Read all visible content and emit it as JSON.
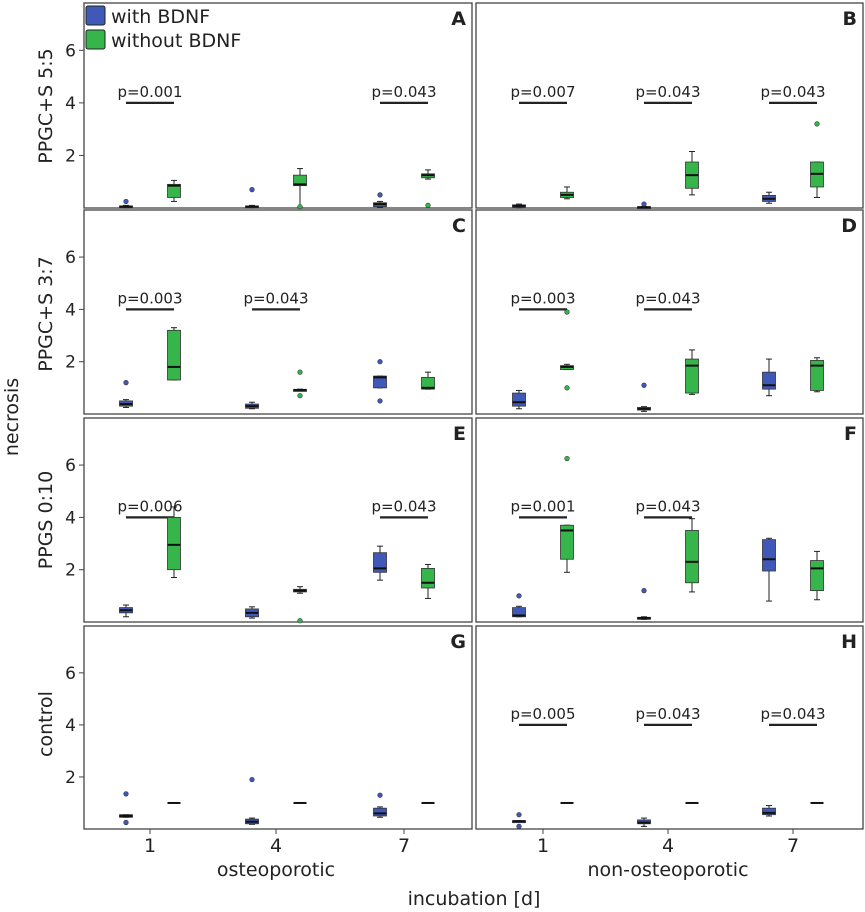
{
  "colors": {
    "with_bdnf": "#4059b8",
    "without_bdnf": "#35b54a",
    "frame": "#444444"
  },
  "chart_data": {
    "type": "box",
    "ylabel": "necrosis",
    "xlabel": "incubation [d]",
    "group_labels": [
      "osteoporotic",
      "non-osteoporotic"
    ],
    "x_ticks": [
      "1",
      "4",
      "7"
    ],
    "y_ticks": [
      "2",
      "4",
      "6"
    ],
    "ylim": [
      0,
      7.8
    ],
    "legend": [
      "with BDNF",
      "without BDNF"
    ],
    "row_labels": [
      "PPGC+S 5:5",
      "PPGC+S 3:7",
      "PPGS 0:10",
      "control"
    ],
    "panels": [
      {
        "letter": "A",
        "row": 0,
        "col": 0,
        "boxes": [
          {
            "day": 0,
            "series": 0,
            "q1": 0.02,
            "med": 0.05,
            "q3": 0.08,
            "lo": 0.0,
            "hi": 0.1,
            "out": [
              0.25
            ]
          },
          {
            "day": 0,
            "series": 1,
            "q1": 0.4,
            "med": 0.85,
            "q3": 0.9,
            "lo": 0.25,
            "hi": 1.05,
            "out": []
          },
          {
            "day": 1,
            "series": 0,
            "q1": 0.02,
            "med": 0.05,
            "q3": 0.08,
            "lo": 0.0,
            "hi": 0.1,
            "out": [
              0.7
            ]
          },
          {
            "day": 1,
            "series": 1,
            "q1": 0.85,
            "med": 0.9,
            "q3": 1.25,
            "lo": 0.0,
            "hi": 1.5,
            "out": [
              0.05
            ]
          },
          {
            "day": 2,
            "series": 0,
            "q1": 0.05,
            "med": 0.15,
            "q3": 0.2,
            "lo": 0.02,
            "hi": 0.25,
            "out": [
              0.5
            ]
          },
          {
            "day": 2,
            "series": 1,
            "q1": 1.15,
            "med": 1.25,
            "q3": 1.3,
            "lo": 1.1,
            "hi": 1.45,
            "out": [
              0.1
            ]
          }
        ],
        "pvals": [
          {
            "day": 0,
            "text": "p=0.001"
          },
          {
            "day": 2,
            "text": "p=0.043"
          }
        ]
      },
      {
        "letter": "B",
        "row": 0,
        "col": 1,
        "boxes": [
          {
            "day": 0,
            "series": 0,
            "q1": 0.03,
            "med": 0.08,
            "q3": 0.12,
            "lo": 0.0,
            "hi": 0.15,
            "out": []
          },
          {
            "day": 0,
            "series": 1,
            "q1": 0.4,
            "med": 0.5,
            "q3": 0.6,
            "lo": 0.35,
            "hi": 0.8,
            "out": []
          },
          {
            "day": 1,
            "series": 0,
            "q1": 0.01,
            "med": 0.03,
            "q3": 0.05,
            "lo": 0.0,
            "hi": 0.06,
            "out": [
              0.15
            ]
          },
          {
            "day": 1,
            "series": 1,
            "q1": 0.75,
            "med": 1.25,
            "q3": 1.75,
            "lo": 0.5,
            "hi": 2.15,
            "out": []
          },
          {
            "day": 2,
            "series": 0,
            "q1": 0.25,
            "med": 0.35,
            "q3": 0.48,
            "lo": 0.18,
            "hi": 0.6,
            "out": []
          },
          {
            "day": 2,
            "series": 1,
            "q1": 0.8,
            "med": 1.3,
            "q3": 1.75,
            "lo": 0.4,
            "hi": 1.75,
            "out": [
              3.2
            ]
          }
        ],
        "pvals": [
          {
            "day": 0,
            "text": "p=0.007"
          },
          {
            "day": 1,
            "text": "p=0.043"
          },
          {
            "day": 2,
            "text": "p=0.043"
          }
        ]
      },
      {
        "letter": "C",
        "row": 1,
        "col": 0,
        "boxes": [
          {
            "day": 0,
            "series": 0,
            "q1": 0.3,
            "med": 0.38,
            "q3": 0.5,
            "lo": 0.25,
            "hi": 0.55,
            "out": [
              1.2
            ]
          },
          {
            "day": 0,
            "series": 1,
            "q1": 1.3,
            "med": 1.8,
            "q3": 3.2,
            "lo": 1.3,
            "hi": 3.3,
            "out": []
          },
          {
            "day": 1,
            "series": 0,
            "q1": 0.22,
            "med": 0.3,
            "q3": 0.38,
            "lo": 0.2,
            "hi": 0.45,
            "out": []
          },
          {
            "day": 1,
            "series": 1,
            "q1": 0.9,
            "med": 0.92,
            "q3": 0.94,
            "lo": 0.9,
            "hi": 0.95,
            "out": [
              1.6,
              0.7
            ]
          },
          {
            "day": 2,
            "series": 0,
            "q1": 1.0,
            "med": 1.4,
            "q3": 1.45,
            "lo": 1.0,
            "hi": 1.45,
            "out": [
              2.0,
              0.5
            ]
          },
          {
            "day": 2,
            "series": 1,
            "q1": 0.95,
            "med": 1.0,
            "q3": 1.4,
            "lo": 0.95,
            "hi": 1.6,
            "out": []
          }
        ],
        "pvals": [
          {
            "day": 0,
            "text": "p=0.003"
          },
          {
            "day": 1,
            "text": "p=0.043"
          }
        ]
      },
      {
        "letter": "D",
        "row": 1,
        "col": 1,
        "boxes": [
          {
            "day": 0,
            "series": 0,
            "q1": 0.3,
            "med": 0.45,
            "q3": 0.8,
            "lo": 0.2,
            "hi": 0.9,
            "out": []
          },
          {
            "day": 0,
            "series": 1,
            "q1": 1.7,
            "med": 1.8,
            "q3": 1.85,
            "lo": 1.7,
            "hi": 1.9,
            "out": [
              3.9,
              1.0
            ]
          },
          {
            "day": 1,
            "series": 0,
            "q1": 0.15,
            "med": 0.2,
            "q3": 0.25,
            "lo": 0.1,
            "hi": 0.28,
            "out": [
              1.1
            ]
          },
          {
            "day": 1,
            "series": 1,
            "q1": 0.8,
            "med": 1.85,
            "q3": 2.1,
            "lo": 0.75,
            "hi": 2.45,
            "out": []
          },
          {
            "day": 2,
            "series": 0,
            "q1": 0.95,
            "med": 1.1,
            "q3": 1.6,
            "lo": 0.7,
            "hi": 2.1,
            "out": []
          },
          {
            "day": 2,
            "series": 1,
            "q1": 0.9,
            "med": 1.85,
            "q3": 2.05,
            "lo": 0.85,
            "hi": 2.15,
            "out": []
          }
        ],
        "pvals": [
          {
            "day": 0,
            "text": "p=0.003"
          },
          {
            "day": 1,
            "text": "p=0.043"
          }
        ]
      },
      {
        "letter": "E",
        "row": 2,
        "col": 0,
        "boxes": [
          {
            "day": 0,
            "series": 0,
            "q1": 0.35,
            "med": 0.45,
            "q3": 0.55,
            "lo": 0.2,
            "hi": 0.65,
            "out": []
          },
          {
            "day": 0,
            "series": 1,
            "q1": 2.0,
            "med": 2.95,
            "q3": 4.0,
            "lo": 1.7,
            "hi": 4.4,
            "out": []
          },
          {
            "day": 1,
            "series": 0,
            "q1": 0.2,
            "med": 0.35,
            "q3": 0.5,
            "lo": 0.15,
            "hi": 0.58,
            "out": []
          },
          {
            "day": 1,
            "series": 1,
            "q1": 1.15,
            "med": 1.2,
            "q3": 1.25,
            "lo": 1.1,
            "hi": 1.35,
            "out": [
              0.05
            ]
          },
          {
            "day": 2,
            "series": 0,
            "q1": 1.9,
            "med": 2.05,
            "q3": 2.65,
            "lo": 1.6,
            "hi": 2.9,
            "out": []
          },
          {
            "day": 2,
            "series": 1,
            "q1": 1.3,
            "med": 1.5,
            "q3": 2.05,
            "lo": 0.9,
            "hi": 2.2,
            "out": []
          }
        ],
        "pvals": [
          {
            "day": 0,
            "text": "p=0.006"
          },
          {
            "day": 2,
            "text": "p=0.043"
          }
        ]
      },
      {
        "letter": "F",
        "row": 2,
        "col": 1,
        "boxes": [
          {
            "day": 0,
            "series": 0,
            "q1": 0.2,
            "med": 0.25,
            "q3": 0.55,
            "lo": 0.2,
            "hi": 0.6,
            "out": [
              1.0
            ]
          },
          {
            "day": 0,
            "series": 1,
            "q1": 2.4,
            "med": 3.5,
            "q3": 3.7,
            "lo": 1.9,
            "hi": 3.7,
            "out": [
              6.25
            ]
          },
          {
            "day": 1,
            "series": 0,
            "q1": 0.12,
            "med": 0.15,
            "q3": 0.18,
            "lo": 0.1,
            "hi": 0.2,
            "out": [
              1.2
            ]
          },
          {
            "day": 1,
            "series": 1,
            "q1": 1.5,
            "med": 2.3,
            "q3": 3.5,
            "lo": 1.15,
            "hi": 3.95,
            "out": []
          },
          {
            "day": 2,
            "series": 0,
            "q1": 1.95,
            "med": 2.4,
            "q3": 3.15,
            "lo": 0.8,
            "hi": 3.2,
            "out": []
          },
          {
            "day": 2,
            "series": 1,
            "q1": 1.2,
            "med": 2.05,
            "q3": 2.35,
            "lo": 0.85,
            "hi": 2.7,
            "out": []
          }
        ],
        "pvals": [
          {
            "day": 0,
            "text": "p=0.001"
          },
          {
            "day": 1,
            "text": "p=0.043"
          }
        ]
      },
      {
        "letter": "G",
        "row": 3,
        "col": 0,
        "boxes": [
          {
            "day": 0,
            "series": 0,
            "q1": 0.45,
            "med": 0.5,
            "q3": 0.55,
            "lo": 0.45,
            "hi": 0.55,
            "out": [
              1.35,
              0.25
            ]
          },
          {
            "day": 0,
            "series": 1,
            "q1": 1.0,
            "med": 1.0,
            "q3": 1.0,
            "lo": 1.0,
            "hi": 1.0,
            "out": []
          },
          {
            "day": 1,
            "series": 0,
            "q1": 0.2,
            "med": 0.28,
            "q3": 0.38,
            "lo": 0.18,
            "hi": 0.42,
            "out": [
              1.9
            ]
          },
          {
            "day": 1,
            "series": 1,
            "q1": 1.0,
            "med": 1.0,
            "q3": 1.0,
            "lo": 1.0,
            "hi": 1.0,
            "out": []
          },
          {
            "day": 2,
            "series": 0,
            "q1": 0.5,
            "med": 0.6,
            "q3": 0.8,
            "lo": 0.45,
            "hi": 0.85,
            "out": [
              1.3
            ]
          },
          {
            "day": 2,
            "series": 1,
            "q1": 1.0,
            "med": 1.0,
            "q3": 1.0,
            "lo": 1.0,
            "hi": 1.0,
            "out": []
          }
        ],
        "pvals": []
      },
      {
        "letter": "H",
        "row": 3,
        "col": 1,
        "boxes": [
          {
            "day": 0,
            "series": 0,
            "q1": 0.28,
            "med": 0.3,
            "q3": 0.32,
            "lo": 0.28,
            "hi": 0.32,
            "out": [
              0.55,
              0.1
            ]
          },
          {
            "day": 0,
            "series": 1,
            "q1": 1.0,
            "med": 1.0,
            "q3": 1.0,
            "lo": 1.0,
            "hi": 1.0,
            "out": []
          },
          {
            "day": 1,
            "series": 0,
            "q1": 0.2,
            "med": 0.25,
            "q3": 0.35,
            "lo": 0.1,
            "hi": 0.42,
            "out": []
          },
          {
            "day": 1,
            "series": 1,
            "q1": 1.0,
            "med": 1.0,
            "q3": 1.0,
            "lo": 1.0,
            "hi": 1.0,
            "out": []
          },
          {
            "day": 2,
            "series": 0,
            "q1": 0.55,
            "med": 0.62,
            "q3": 0.8,
            "lo": 0.5,
            "hi": 0.9,
            "out": []
          },
          {
            "day": 2,
            "series": 1,
            "q1": 1.0,
            "med": 1.0,
            "q3": 1.0,
            "lo": 1.0,
            "hi": 1.0,
            "out": []
          }
        ],
        "pvals": [
          {
            "day": 0,
            "text": "p=0.005"
          },
          {
            "day": 1,
            "text": "p=0.043"
          },
          {
            "day": 2,
            "text": "p=0.043"
          }
        ]
      }
    ]
  }
}
